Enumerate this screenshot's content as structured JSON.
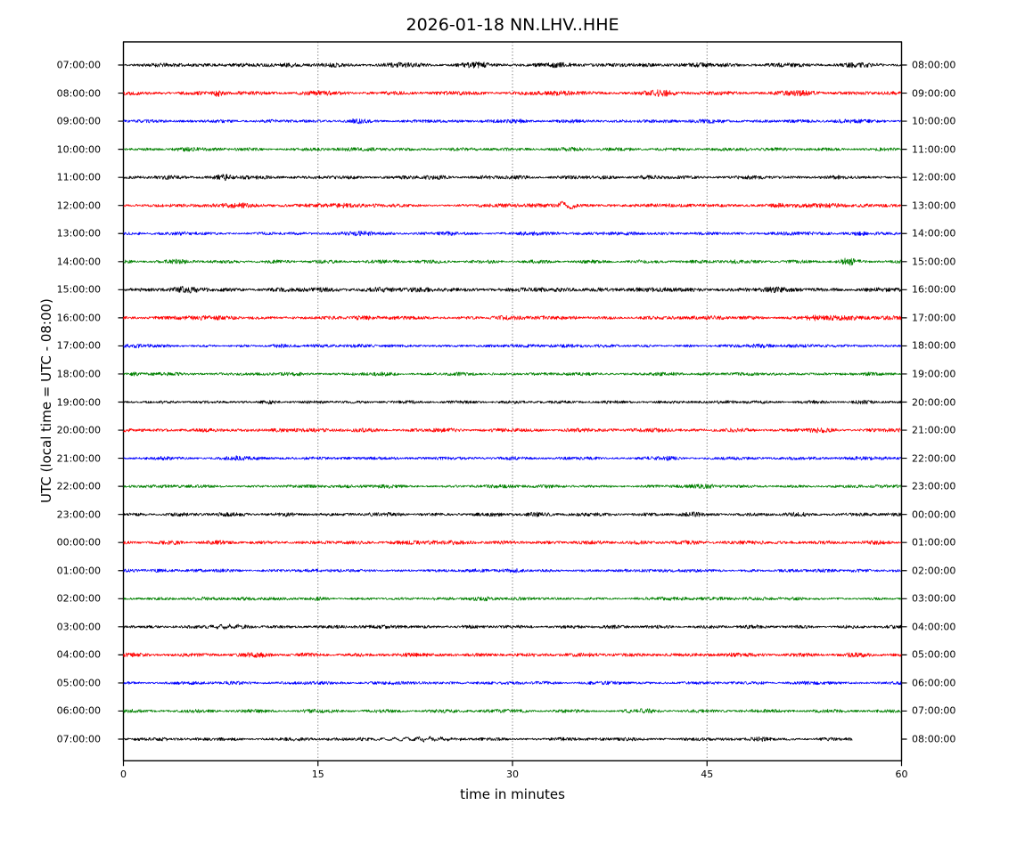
{
  "chart_data": {
    "type": "line",
    "variant": "seismogram-helicorder-dayplot",
    "title": "2026-01-18 NN.LHV..HHE",
    "date": "2026-01-18",
    "stream_id": "NN.LHV..HHE",
    "xlabel": "time in minutes",
    "ylabel": "UTC (local time = UTC - 08:00)",
    "x_range_minutes": [
      0,
      60
    ],
    "x_tick_minutes": [
      0,
      15,
      30,
      45,
      60
    ],
    "x_tick_labels": [
      "0",
      "15",
      "30",
      "45",
      "60"
    ],
    "grid_minutes": [
      15,
      30,
      45
    ],
    "grid_style": "dotted",
    "minutes_per_line": 60,
    "trace_count": 25,
    "color_cycle": [
      "#000000",
      "#ff0000",
      "#0000ff",
      "#008000"
    ],
    "rows": [
      {
        "left": "07:00:00",
        "right": "08:00:00",
        "color": "#000000",
        "amp": 2.4,
        "seed": 11,
        "end": 60,
        "bursts": [
          [
            13,
            1.2,
            0.4
          ],
          [
            21,
            1.2,
            0.4
          ],
          [
            27.5,
            1.5,
            0.5
          ],
          [
            34,
            1.2,
            0.4
          ],
          [
            44.5,
            1,
            0.35
          ],
          [
            56,
            1.2,
            0.4
          ]
        ]
      },
      {
        "left": "08:00:00",
        "right": "09:00:00",
        "color": "#ff0000",
        "amp": 2.4,
        "seed": 22,
        "end": 60,
        "bursts": [
          [
            7.3,
            0.5,
            1.0
          ],
          [
            14,
            1,
            0.35
          ],
          [
            33.5,
            1.5,
            0.5
          ],
          [
            41.5,
            1.5,
            0.6
          ],
          [
            52.5,
            1.5,
            0.5
          ]
        ]
      },
      {
        "left": "09:00:00",
        "right": "10:00:00",
        "color": "#0000ff",
        "amp": 2.0,
        "seed": 33,
        "end": 60,
        "bursts": [
          [
            18,
            1,
            0.4
          ],
          [
            30.5,
            1,
            0.4
          ],
          [
            44,
            1.5,
            0.45
          ],
          [
            55.5,
            1.5,
            0.4
          ]
        ]
      },
      {
        "left": "10:00:00",
        "right": "11:00:00",
        "color": "#008000",
        "amp": 2.0,
        "seed": 44,
        "end": 60,
        "bursts": [
          [
            4.5,
            1,
            0.7
          ],
          [
            20,
            1.5,
            0.4
          ],
          [
            34.5,
            1.5,
            0.45
          ],
          [
            48,
            1,
            0.3
          ]
        ]
      },
      {
        "left": "11:00:00",
        "right": "12:00:00",
        "color": "#000000",
        "amp": 2.2,
        "seed": 55,
        "end": 60,
        "bursts": [
          [
            7.7,
            0.9,
            1.1
          ],
          [
            24,
            1.5,
            0.3
          ],
          [
            40,
            1,
            0.3
          ]
        ]
      },
      {
        "left": "12:00:00",
        "right": "13:00:00",
        "color": "#ff0000",
        "amp": 2.3,
        "seed": 66,
        "end": 60,
        "bursts": [
          [
            9,
            1.5,
            0.5
          ],
          [
            17,
            1,
            0.3
          ],
          [
            50.5,
            1.5,
            0.5
          ]
        ],
        "events": [
          {
            "kind": "wiggle",
            "minute": 34.2,
            "width": 0.9,
            "amp": 5
          }
        ]
      },
      {
        "left": "13:00:00",
        "right": "14:00:00",
        "color": "#0000ff",
        "amp": 2.0,
        "seed": 77,
        "end": 60,
        "bursts": [
          [
            18.3,
            1,
            0.5
          ],
          [
            25,
            1,
            0.3
          ],
          [
            31,
            1,
            0.4
          ],
          [
            42,
            1,
            0.3
          ],
          [
            56.5,
            1.5,
            0.4
          ]
        ]
      },
      {
        "left": "14:00:00",
        "right": "15:00:00",
        "color": "#008000",
        "amp": 2.0,
        "seed": 88,
        "end": 60,
        "bursts": [
          [
            4.5,
            1.5,
            0.5
          ],
          [
            21,
            1,
            0.3
          ],
          [
            47,
            1.5,
            0.4
          ],
          [
            55.9,
            0.9,
            1.2
          ]
        ]
      },
      {
        "left": "15:00:00",
        "right": "16:00:00",
        "color": "#000000",
        "amp": 2.7,
        "seed": 99,
        "end": 60,
        "bursts": [
          [
            5,
            1.5,
            0.4
          ],
          [
            20,
            1.5,
            0.4
          ],
          [
            37,
            1.5,
            0.3
          ],
          [
            50,
            1,
            0.3
          ]
        ]
      },
      {
        "left": "16:00:00",
        "right": "17:00:00",
        "color": "#ff0000",
        "amp": 2.3,
        "seed": 110,
        "end": 60,
        "bursts": [
          [
            6,
            1,
            0.4
          ],
          [
            29,
            1,
            0.3
          ],
          [
            53.2,
            1,
            0.8
          ],
          [
            54.8,
            1,
            0.7
          ]
        ]
      },
      {
        "left": "17:00:00",
        "right": "18:00:00",
        "color": "#0000ff",
        "amp": 1.9,
        "seed": 121,
        "end": 60,
        "bursts": [
          [
            1.5,
            1,
            0.5
          ],
          [
            12,
            1,
            0.3
          ],
          [
            30,
            1,
            0.3
          ],
          [
            48.5,
            1.5,
            0.45
          ]
        ]
      },
      {
        "left": "18:00:00",
        "right": "19:00:00",
        "color": "#008000",
        "amp": 1.9,
        "seed": 132,
        "end": 60,
        "bursts": [
          [
            0.8,
            0.8,
            0.6
          ],
          [
            13,
            1,
            0.4
          ],
          [
            20.5,
            1,
            0.4
          ],
          [
            45,
            1,
            0.3
          ]
        ]
      },
      {
        "left": "19:00:00",
        "right": "20:00:00",
        "color": "#000000",
        "amp": 1.8,
        "seed": 143,
        "end": 60,
        "bursts": [
          [
            11.5,
            1,
            0.5
          ],
          [
            23,
            1,
            0.3
          ],
          [
            46.5,
            1,
            0.5
          ],
          [
            57,
            1,
            0.4
          ]
        ]
      },
      {
        "left": "20:00:00",
        "right": "21:00:00",
        "color": "#ff0000",
        "amp": 2.2,
        "seed": 154,
        "end": 60,
        "bursts": [
          [
            14.5,
            1.5,
            0.5
          ],
          [
            25,
            1,
            0.3
          ],
          [
            39.5,
            1,
            0.4
          ],
          [
            54,
            1.5,
            0.4
          ]
        ]
      },
      {
        "left": "21:00:00",
        "right": "22:00:00",
        "color": "#0000ff",
        "amp": 1.9,
        "seed": 165,
        "end": 60,
        "bursts": [
          [
            8.5,
            1.5,
            0.5
          ],
          [
            30,
            1,
            0.3
          ],
          [
            42,
            1,
            0.3
          ],
          [
            56,
            1.5,
            0.5
          ]
        ]
      },
      {
        "left": "22:00:00",
        "right": "23:00:00",
        "color": "#008000",
        "amp": 1.9,
        "seed": 176,
        "end": 60,
        "bursts": [
          [
            20.5,
            1.5,
            0.5
          ],
          [
            33,
            1,
            0.3
          ],
          [
            45,
            1.5,
            0.4
          ]
        ]
      },
      {
        "left": "23:00:00",
        "right": "00:00:00",
        "color": "#000000",
        "amp": 2.1,
        "seed": 187,
        "end": 60,
        "bursts": [
          [
            8,
            1.5,
            0.4
          ],
          [
            19,
            1,
            0.3
          ],
          [
            31.5,
            1.5,
            0.5
          ],
          [
            44,
            1,
            0.3
          ],
          [
            52,
            1,
            0.3
          ]
        ]
      },
      {
        "left": "00:00:00",
        "right": "01:00:00",
        "color": "#ff0000",
        "amp": 2.2,
        "seed": 198,
        "end": 60,
        "bursts": [
          [
            4,
            1,
            0.3
          ],
          [
            23.5,
            2,
            0.6
          ],
          [
            42.5,
            1.5,
            0.4
          ],
          [
            49,
            1,
            0.3
          ]
        ]
      },
      {
        "left": "01:00:00",
        "right": "02:00:00",
        "color": "#0000ff",
        "amp": 1.9,
        "seed": 209,
        "end": 60,
        "bursts": [
          [
            7.5,
            1.2,
            0.5
          ],
          [
            30.5,
            1,
            0.4
          ],
          [
            44,
            1,
            0.3
          ]
        ]
      },
      {
        "left": "02:00:00",
        "right": "03:00:00",
        "color": "#008000",
        "amp": 1.9,
        "seed": 220,
        "end": 60,
        "bursts": [
          [
            15,
            1,
            0.3
          ],
          [
            28,
            1,
            0.3
          ],
          [
            41.5,
            1.5,
            0.5
          ],
          [
            51,
            1,
            0.3
          ]
        ]
      },
      {
        "left": "03:00:00",
        "right": "04:00:00",
        "color": "#000000",
        "amp": 2.0,
        "seed": 231,
        "end": 60,
        "bursts": [
          [
            21,
            1.5,
            0.4
          ],
          [
            35,
            1,
            0.3
          ]
        ],
        "events": [
          {
            "kind": "wave",
            "minute": 8,
            "width": 4,
            "amp": 1.4,
            "cycles": 6
          }
        ]
      },
      {
        "left": "04:00:00",
        "right": "05:00:00",
        "color": "#ff0000",
        "amp": 2.2,
        "seed": 242,
        "end": 60,
        "bursts": [
          [
            10.5,
            1.5,
            0.5
          ],
          [
            22,
            1,
            0.3
          ],
          [
            36,
            1,
            0.3
          ],
          [
            47,
            1,
            0.4
          ],
          [
            56.5,
            1,
            0.5
          ]
        ]
      },
      {
        "left": "05:00:00",
        "right": "06:00:00",
        "color": "#0000ff",
        "amp": 1.9,
        "seed": 253,
        "end": 60,
        "bursts": [
          [
            8.5,
            1,
            0.4
          ],
          [
            19,
            1,
            0.3
          ],
          [
            33,
            1,
            0.3
          ],
          [
            49,
            1,
            0.3
          ]
        ]
      },
      {
        "left": "06:00:00",
        "right": "07:00:00",
        "color": "#008000",
        "amp": 2.0,
        "seed": 264,
        "end": 60,
        "bursts": [
          [
            14,
            1,
            0.3
          ],
          [
            28,
            1.5,
            0.4
          ],
          [
            40.5,
            1.5,
            0.4
          ],
          [
            51,
            1,
            0.3
          ]
        ]
      },
      {
        "left": "07:00:00",
        "right": "08:00:00",
        "color": "#000000",
        "amp": 2.0,
        "seed": 275,
        "end": 56.2,
        "bursts": [
          [
            49,
            1,
            0.3
          ]
        ],
        "events": [
          {
            "kind": "wave",
            "minute": 22.5,
            "width": 9,
            "amp": 1.5,
            "cycles": 10
          }
        ]
      }
    ]
  }
}
